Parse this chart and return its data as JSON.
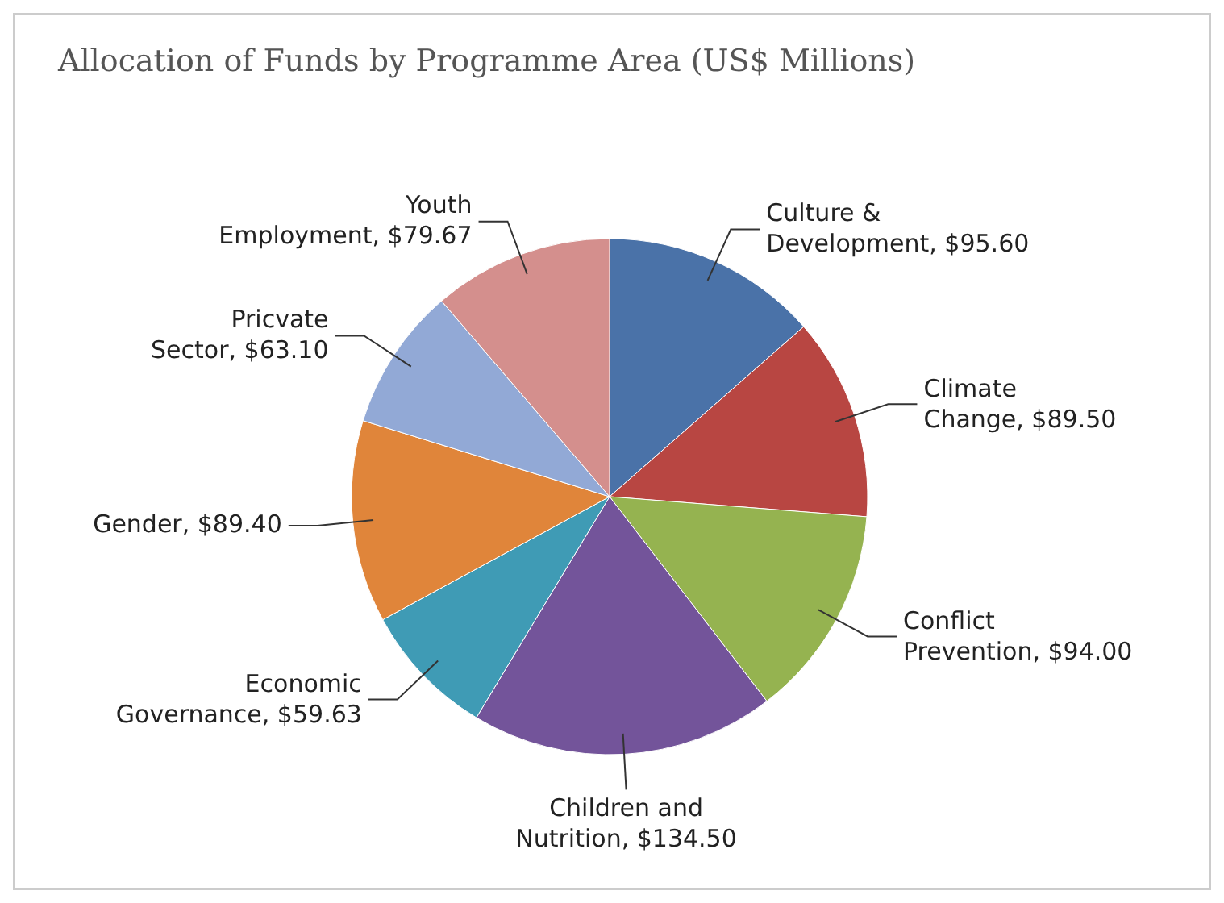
{
  "chart_data": {
    "type": "pie",
    "title": "Allocation of Funds by Programme Area (US$ Millions)",
    "categories": [
      "Culture & Development",
      "Climate Change",
      "Conflict Prevention",
      "Children and Nutrition",
      "Economic Governance",
      "Gender",
      "Pricvate Sector",
      "Youth Employment"
    ],
    "values": [
      95.6,
      89.5,
      94.0,
      134.5,
      59.63,
      89.4,
      63.1,
      79.67
    ],
    "value_labels": [
      "$95.60",
      "$89.50",
      "$94.00",
      "$134.50",
      "$59.63",
      "$89.40",
      "$63.10",
      "$79.67"
    ],
    "colors": [
      "#4a72a8",
      "#b84642",
      "#95b350",
      "#73549a",
      "#3f9bb5",
      "#e0853a",
      "#92a9d6",
      "#d48f8d"
    ]
  }
}
